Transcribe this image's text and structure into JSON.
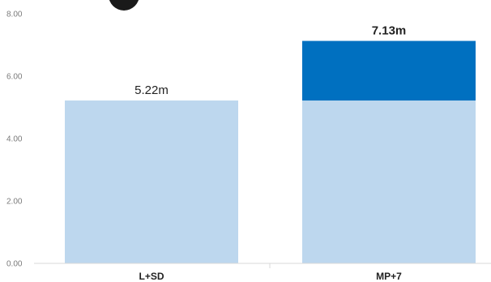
{
  "chart_data": {
    "type": "bar",
    "stacked": true,
    "categories": [
      "L+SD",
      "MP+7"
    ],
    "series": [
      {
        "values": [
          5.22,
          5.22
        ],
        "color": "#bdd7ee"
      },
      {
        "values": [
          0,
          1.91
        ],
        "color": "#0070c0"
      }
    ],
    "totals": [
      5.22,
      7.13
    ],
    "data_labels": [
      "5.22m",
      "7.13m"
    ],
    "data_label_bold": [
      false,
      true
    ],
    "yticks": [
      "0.00",
      "2.00",
      "4.00",
      "6.00",
      "8.00"
    ],
    "ylim": [
      0,
      8
    ],
    "grid": false,
    "legend": "none"
  },
  "decor": {
    "avatar_icon": "dark-circle-icon"
  }
}
